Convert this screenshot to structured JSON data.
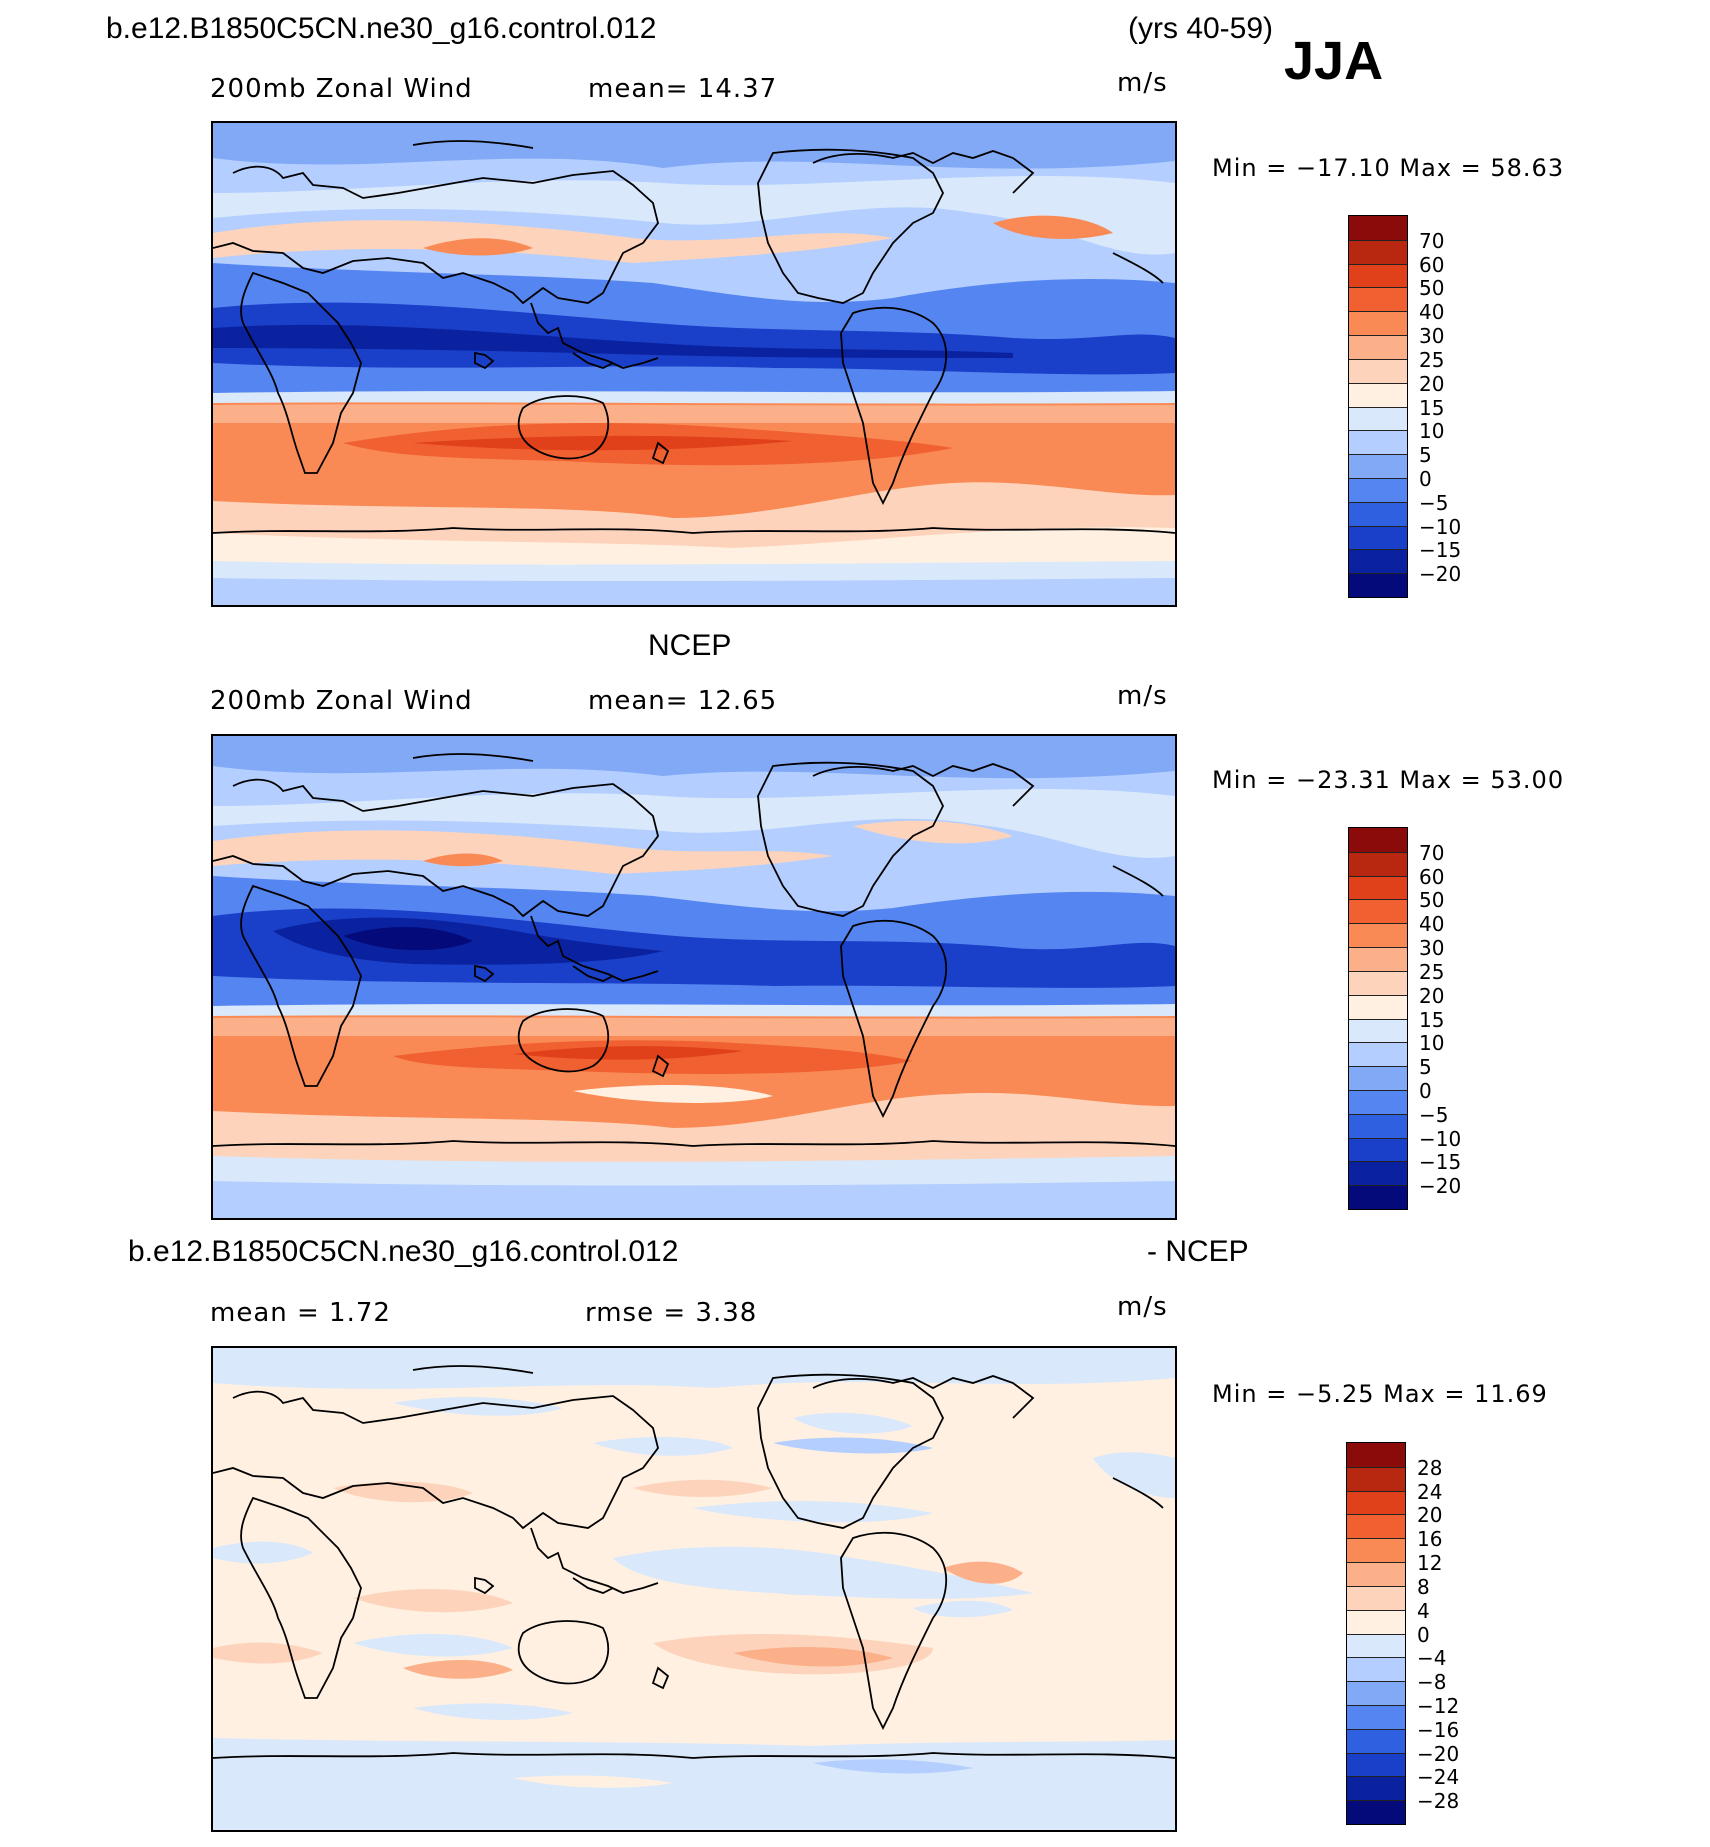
{
  "header": {
    "case_name": "b.e12.B1850C5CN.ne30_g16.control.012",
    "years": "(yrs 40-59)",
    "season": "JJA"
  },
  "panels": [
    {
      "id": "model",
      "title": "",
      "field": "200mb Zonal Wind",
      "stat": "mean=   14.37",
      "units": "m/s",
      "minmax": "Min = −17.10 Max =   58.63",
      "colorbar": {
        "labels": [
          "70",
          "60",
          "50",
          "40",
          "30",
          "25",
          "20",
          "15",
          "10",
          "5",
          "0",
          "−5",
          "−10",
          "−15",
          "−20"
        ],
        "colors": [
          "#8b0a0a",
          "#b82810",
          "#e0401a",
          "#f06030",
          "#f98a55",
          "#fbb08a",
          "#fdd4bb",
          "#fff0e2",
          "#d9e8fa",
          "#b3ceff",
          "#82a9f5",
          "#5585f0",
          "#2f60e0",
          "#1a3fc8",
          "#0a22a0",
          "#040a7a"
        ]
      }
    },
    {
      "id": "obs",
      "title": "NCEP",
      "field": "200mb Zonal Wind",
      "stat": "mean=   12.65",
      "units": "m/s",
      "minmax": "Min = −23.31 Max =   53.00",
      "colorbar": {
        "labels": [
          "70",
          "60",
          "50",
          "40",
          "30",
          "25",
          "20",
          "15",
          "10",
          "5",
          "0",
          "−5",
          "−10",
          "−15",
          "−20"
        ],
        "colors": [
          "#8b0a0a",
          "#b82810",
          "#e0401a",
          "#f06030",
          "#f98a55",
          "#fbb08a",
          "#fdd4bb",
          "#fff0e2",
          "#d9e8fa",
          "#b3ceff",
          "#82a9f5",
          "#5585f0",
          "#2f60e0",
          "#1a3fc8",
          "#0a22a0",
          "#040a7a"
        ]
      }
    },
    {
      "id": "diff",
      "title_left": "b.e12.B1850C5CN.ne30_g16.control.012",
      "title_right": "- NCEP",
      "field": "mean =    1.72",
      "stat": "rmse =    3.38",
      "units": "m/s",
      "minmax": "Min =  −5.25 Max =   11.69",
      "colorbar": {
        "labels": [
          "28",
          "24",
          "20",
          "16",
          "12",
          "8",
          "4",
          "0",
          "−4",
          "−8",
          "−12",
          "−16",
          "−20",
          "−24",
          "−28"
        ],
        "colors": [
          "#8b0a0a",
          "#b82810",
          "#e0401a",
          "#f06030",
          "#f98a55",
          "#fbb08a",
          "#fdd4bb",
          "#fff0e2",
          "#d9e8fa",
          "#b3ceff",
          "#82a9f5",
          "#5585f0",
          "#2f60e0",
          "#1a3fc8",
          "#0a22a0",
          "#040a7a"
        ]
      }
    }
  ]
}
